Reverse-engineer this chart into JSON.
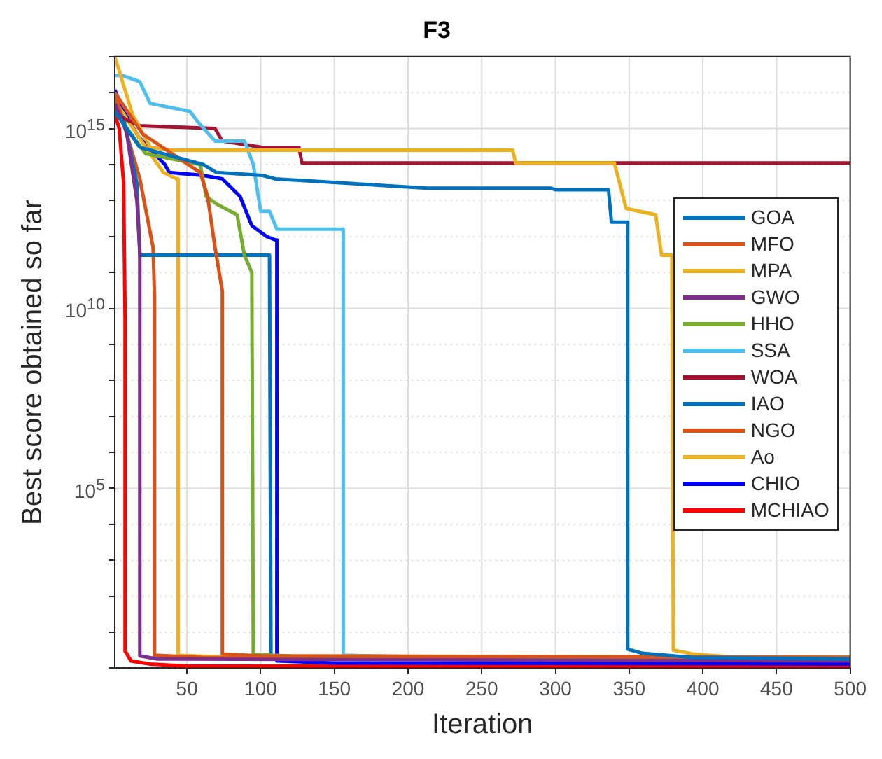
{
  "chart_data": {
    "type": "line",
    "title": "F3",
    "xlabel": "Iteration",
    "ylabel": "Best score obtained so far",
    "log": "y",
    "grid": true,
    "legend": "right",
    "xlim": [
      1,
      500
    ],
    "xticks": [
      50,
      100,
      150,
      200,
      250,
      300,
      350,
      400,
      450,
      500
    ],
    "ylim": [
      1,
      1e+17
    ],
    "yticks": [
      {
        "value": 1,
        "label": null
      },
      {
        "value": 10,
        "label": null
      },
      {
        "value": 100,
        "label": null
      },
      {
        "value": 1000,
        "label": null
      },
      {
        "value": 10000,
        "label": null
      },
      {
        "value": 100000,
        "label": "10$^{5}$"
      },
      {
        "value": 1000000.0,
        "label": null
      },
      {
        "value": 10000000.0,
        "label": null
      },
      {
        "value": 100000000.0,
        "label": null
      },
      {
        "value": 1000000000.0,
        "label": null
      },
      {
        "value": 10000000000.0,
        "label": "10$^{10}$"
      },
      {
        "value": 100000000000.0,
        "label": null
      },
      {
        "value": 1000000000000.0,
        "label": null
      },
      {
        "value": 10000000000000.0,
        "label": null
      },
      {
        "value": 100000000000000.0,
        "label": null
      },
      {
        "value": 1000000000000000.0,
        "label": "10$^{15}$"
      },
      {
        "value": 1e+16,
        "label": null
      },
      {
        "value": 1e+17,
        "label": null
      }
    ],
    "series": [
      {
        "name": "GOA",
        "color": "#0072bd",
        "x": [
          1,
          18,
          61,
          70,
          101,
          110,
          213,
          297,
          300,
          336,
          338,
          349,
          349,
          359,
          393,
          500
        ],
        "values": [
          3000000000000000.0,
          300000000000000.0,
          100000000000000.0,
          60000000000000.0,
          50000000000000.0,
          40000000000000.0,
          22000000000000.0,
          22000000000000.0,
          20000000000000.0,
          20000000000000.0,
          2500000000000.0,
          2500000000000.0,
          3.4,
          2.6,
          2,
          1.8
        ]
      },
      {
        "name": "MFO",
        "color": "#d95319",
        "x": [
          1,
          20,
          59,
          64,
          69,
          74,
          74,
          100,
          500
        ],
        "values": [
          1e+16,
          700000000000000.0,
          60000000000000.0,
          13000000000000.0,
          500000000000.0,
          30000000000.0,
          2.5,
          2.2,
          2
        ]
      },
      {
        "name": "MPA",
        "color": "#edb120",
        "x": [
          1,
          13,
          25,
          40,
          271,
          273,
          340,
          348,
          368,
          372,
          379,
          380,
          393,
          423,
          500
        ],
        "values": [
          1e+17,
          2500000000000000.0,
          300000000000000.0,
          250000000000000.0,
          250000000000000.0,
          110000000000000.0,
          110000000000000.0,
          6000000000000.0,
          4000000000000.0,
          300000000000.0,
          300000000000.0,
          3.2,
          2.5,
          2,
          1.9
        ]
      },
      {
        "name": "GWO",
        "color": "#7e2f8e",
        "x": [
          1,
          9,
          16,
          18,
          18,
          30,
          500
        ],
        "values": [
          5000000000000000.0,
          800000000000000.0,
          10000000000000.0,
          400000000000.0,
          2.2,
          1.8,
          1.6
        ]
      },
      {
        "name": "HHO",
        "color": "#77ac30",
        "x": [
          1,
          22,
          59,
          63,
          70,
          84,
          89,
          94,
          95,
          120,
          500
        ],
        "values": [
          3000000000000000.0,
          200000000000000.0,
          100000000000000.0,
          13000000000000.0,
          8000000000000.0,
          4000000000000.0,
          300000000000.0,
          100000000000.0,
          2.4,
          2.2,
          2
        ]
      },
      {
        "name": "SSA",
        "color": "#4dbeee",
        "x": [
          1,
          6,
          18,
          25,
          52,
          57,
          69,
          89,
          95,
          100,
          106,
          111,
          156,
          156,
          200,
          500
        ],
        "values": [
          3e+16,
          3e+16,
          2e+16,
          5000000000000000.0,
          3000000000000000.0,
          1600000000000000.0,
          450000000000000.0,
          450000000000000.0,
          100000000000000.0,
          5000000000000.0,
          5000000000000.0,
          1600000000000.0,
          1600000000000.0,
          2.3,
          2.1,
          2
        ]
      },
      {
        "name": "WOA",
        "color": "#a2142f",
        "x": [
          1,
          18,
          69,
          74,
          101,
          126,
          128,
          500
        ],
        "values": [
          2500000000000000.0,
          1200000000000000.0,
          1000000000000000.0,
          450000000000000.0,
          300000000000000.0,
          300000000000000.0,
          110000000000000.0,
          110000000000000.0
        ]
      },
      {
        "name": "IAO",
        "color": "#0072bd",
        "x": [
          1,
          7,
          16,
          18,
          106,
          107,
          150,
          500
        ],
        "values": [
          3000000000000000.0,
          2000000000000000.0,
          30000000000000.0,
          300000000000.0,
          300000000000.0,
          2.2,
          2,
          1.9
        ]
      },
      {
        "name": "NGO",
        "color": "#d95319",
        "x": [
          1,
          18,
          27,
          28,
          28,
          60,
          500
        ],
        "values": [
          1e+16,
          40000000000000.0,
          500000000000.0,
          20000000000.0,
          2.3,
          2,
          1.8
        ]
      },
      {
        "name": "Ao",
        "color": "#edb120",
        "x": [
          1,
          20,
          34,
          43,
          44,
          44,
          80,
          500
        ],
        "values": [
          6000000000000000.0,
          400000000000000.0,
          60000000000000.0,
          40000000000000.0,
          40000000000000.0,
          2.3,
          2,
          1.8
        ]
      },
      {
        "name": "CHIO",
        "color": "#0000ff",
        "x": [
          1,
          7,
          17,
          35,
          38,
          61,
          74,
          86,
          94,
          104,
          110,
          111,
          111,
          150,
          500
        ],
        "values": [
          1.2e+16,
          3000000000000000.0,
          600000000000000.0,
          100000000000000.0,
          60000000000000.0,
          50000000000000.0,
          40000000000000.0,
          13000000000000.0,
          2000000000000.0,
          1000000000000.0,
          800000000000.0,
          800000000000.0,
          1.6,
          1.4,
          1.3
        ]
      },
      {
        "name": "MCHIAO",
        "color": "#ff0000",
        "x": [
          1,
          4,
          7,
          8,
          8,
          12,
          25,
          50,
          500
        ],
        "values": [
          2500000000000000.0,
          1000000000000000.0,
          30000000000000.0,
          5000000000.0,
          3,
          1.6,
          1.3,
          1.15,
          1.1
        ]
      }
    ]
  }
}
